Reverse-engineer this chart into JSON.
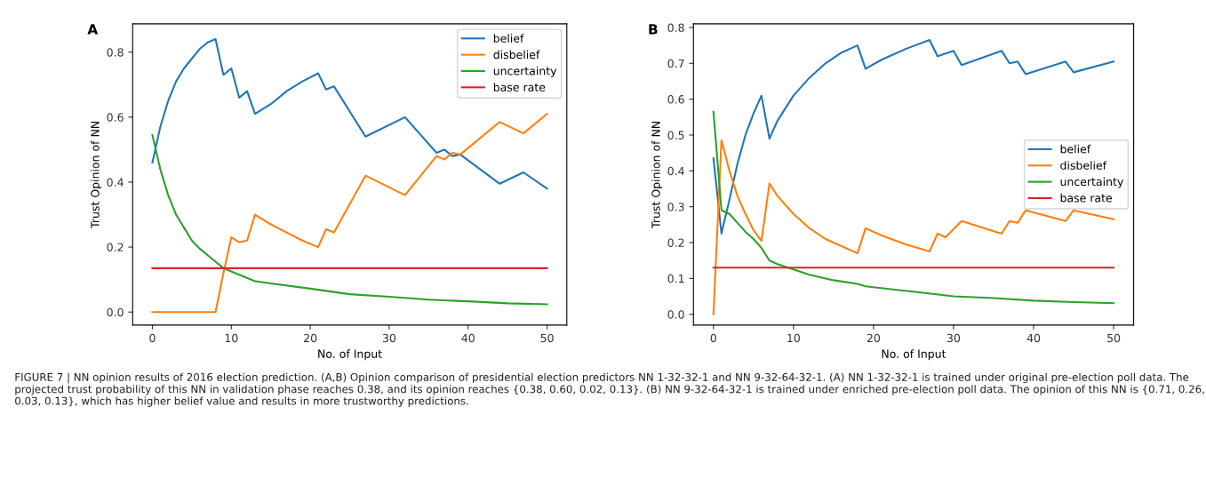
{
  "chart_data": [
    {
      "type": "line",
      "title": "A",
      "xlabel": "No. of Input",
      "ylabel": "Trust Opinion of NN",
      "xlim": [
        -2.5,
        52.5
      ],
      "ylim": [
        -0.04,
        0.887
      ],
      "xticks": [
        0,
        10,
        20,
        30,
        40,
        50
      ],
      "yticks": [
        {
          "value": 0,
          "label": "0.0"
        },
        0.2,
        0.4,
        0.6,
        0.8
      ],
      "legend": "top right",
      "grid": false,
      "series": [
        {
          "name": "belief",
          "color": "#1f77b4",
          "x": [
            0,
            1,
            2,
            3,
            4,
            5,
            6,
            7,
            8,
            9,
            10,
            11,
            12,
            13,
            15,
            17,
            19,
            21,
            22,
            23,
            27,
            32,
            36,
            37,
            38,
            39,
            44,
            47,
            50
          ],
          "values": [
            0.46,
            0.57,
            0.65,
            0.71,
            0.75,
            0.78,
            0.81,
            0.83,
            0.84,
            0.73,
            0.75,
            0.66,
            0.68,
            0.61,
            0.64,
            0.68,
            0.71,
            0.735,
            0.685,
            0.695,
            0.54,
            0.6,
            0.49,
            0.5,
            0.48,
            0.485,
            0.395,
            0.43,
            0.38
          ]
        },
        {
          "name": "disbelief",
          "color": "#ff7f0e",
          "x": [
            0,
            8,
            9,
            10,
            11,
            12,
            13,
            15,
            17,
            19,
            21,
            22,
            23,
            27,
            32,
            36,
            37,
            38,
            39,
            44,
            47,
            50
          ],
          "values": [
            0.0,
            0.0,
            0.12,
            0.23,
            0.215,
            0.22,
            0.3,
            0.27,
            0.245,
            0.22,
            0.2,
            0.255,
            0.245,
            0.42,
            0.36,
            0.48,
            0.47,
            0.49,
            0.485,
            0.585,
            0.55,
            0.61
          ]
        },
        {
          "name": "uncertainty",
          "color": "#2ca02c",
          "x": [
            0,
            1,
            2,
            3,
            4,
            5,
            6,
            7,
            8,
            9,
            10,
            11,
            13,
            15,
            20,
            25,
            30,
            35,
            40,
            45,
            50
          ],
          "values": [
            0.545,
            0.44,
            0.36,
            0.3,
            0.26,
            0.22,
            0.195,
            0.175,
            0.155,
            0.135,
            0.125,
            0.115,
            0.095,
            0.088,
            0.072,
            0.055,
            0.047,
            0.038,
            0.033,
            0.027,
            0.024
          ]
        },
        {
          "name": "base rate",
          "color": "#d62728",
          "x": [
            0,
            50
          ],
          "values": [
            0.135,
            0.135
          ]
        }
      ]
    },
    {
      "type": "line",
      "title": "B",
      "xlabel": "No. of Input",
      "ylabel": "Trust Opinion of NN",
      "xlim": [
        -2.5,
        52.5
      ],
      "ylim": [
        -0.03,
        0.81
      ],
      "xticks": [
        0,
        10,
        20,
        30,
        40,
        50
      ],
      "yticks": [
        {
          "value": 0,
          "label": "0.0"
        },
        0.1,
        0.2,
        0.3,
        0.4,
        0.5,
        0.6,
        0.7,
        0.8
      ],
      "legend": "right",
      "grid": false,
      "series": [
        {
          "name": "belief",
          "color": "#1f77b4",
          "x": [
            0,
            1,
            2,
            3,
            4,
            5,
            6,
            7,
            8,
            10,
            12,
            14,
            16,
            18,
            19,
            21,
            24,
            27,
            28,
            30,
            31,
            36,
            37,
            38,
            39,
            44,
            45,
            50
          ],
          "values": [
            0.435,
            0.225,
            0.32,
            0.42,
            0.5,
            0.56,
            0.61,
            0.49,
            0.54,
            0.61,
            0.66,
            0.7,
            0.73,
            0.75,
            0.685,
            0.71,
            0.74,
            0.765,
            0.72,
            0.735,
            0.695,
            0.735,
            0.7,
            0.705,
            0.67,
            0.705,
            0.675,
            0.705
          ]
        },
        {
          "name": "disbelief",
          "color": "#ff7f0e",
          "x": [
            0,
            1,
            2,
            3,
            4,
            5,
            6,
            7,
            8,
            10,
            12,
            14,
            16,
            18,
            19,
            21,
            24,
            27,
            28,
            29,
            31,
            36,
            37,
            38,
            39,
            44,
            45,
            50
          ],
          "values": [
            0.0,
            0.485,
            0.4,
            0.33,
            0.28,
            0.235,
            0.205,
            0.365,
            0.33,
            0.28,
            0.24,
            0.21,
            0.19,
            0.17,
            0.24,
            0.22,
            0.195,
            0.175,
            0.225,
            0.215,
            0.26,
            0.225,
            0.26,
            0.255,
            0.29,
            0.26,
            0.29,
            0.265
          ]
        },
        {
          "name": "uncertainty",
          "color": "#2ca02c",
          "x": [
            0,
            1,
            2,
            3,
            4,
            5,
            6,
            7,
            8,
            10,
            12,
            15,
            18,
            19,
            25,
            30,
            35,
            40,
            45,
            50
          ],
          "values": [
            0.565,
            0.29,
            0.28,
            0.255,
            0.23,
            0.21,
            0.185,
            0.15,
            0.14,
            0.125,
            0.11,
            0.095,
            0.085,
            0.078,
            0.063,
            0.05,
            0.045,
            0.038,
            0.034,
            0.031
          ]
        },
        {
          "name": "base rate",
          "color": "#d62728",
          "x": [
            0,
            50
          ],
          "values": [
            0.13,
            0.13
          ]
        }
      ],
      "annotations": [
        "FIGURE 7 | NN opinion results of 2016 election prediction. (A,B) Opinion comparison of presidential election predictors NN 1-32-32-1 and NN 9-32-64-32-1. (A) NN 1-32-32-1 is trained under original pre-election poll data. The projected trust probability of this NN in validation phase reaches 0.38, and its opinion reaches {0.38, 0.60, 0.02, 0.13}. (B) NN 9-32-64-32-1 is trained under enriched pre-election poll data. The opinion of this NN is {0.71, 0.26, 0.03, 0.13}, which has higher belief value and results in more trustworthy predictions."
      ]
    }
  ]
}
